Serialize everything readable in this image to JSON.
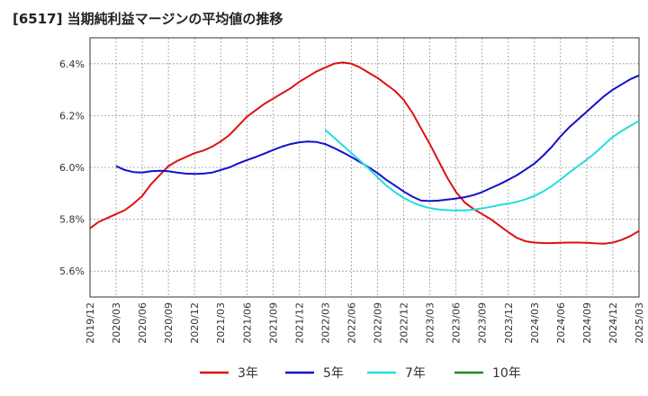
{
  "title": "[6517]  当期純利益マージンの平均値の推移",
  "chart_data": {
    "type": "line",
    "title": "[6517]  当期純利益マージンの平均値の推移",
    "ylim": [
      5.5,
      6.5
    ],
    "yticks": [
      "5.6%",
      "5.8%",
      "6.0%",
      "6.2%",
      "6.4%"
    ],
    "ytick_values": [
      5.6,
      5.8,
      6.0,
      6.2,
      6.4
    ],
    "xticks": [
      "2019/12",
      "2020/03",
      "2020/06",
      "2020/09",
      "2020/12",
      "2021/03",
      "2021/06",
      "2021/09",
      "2021/12",
      "2022/03",
      "2022/06",
      "2022/09",
      "2022/12",
      "2023/03",
      "2023/06",
      "2023/09",
      "2023/12",
      "2024/03",
      "2024/06",
      "2024/09",
      "2024/12",
      "2025/03"
    ],
    "grid": true,
    "legend_position": "bottom",
    "series": [
      {
        "name": "3年",
        "color": "#dd1111",
        "points": [
          [
            "2019/12",
            5.765
          ],
          [
            "2020/01",
            5.79
          ],
          [
            "2020/02",
            5.805
          ],
          [
            "2020/03",
            5.82
          ],
          [
            "2020/04",
            5.835
          ],
          [
            "2020/05",
            5.86
          ],
          [
            "2020/06",
            5.89
          ],
          [
            "2020/07",
            5.935
          ],
          [
            "2020/08",
            5.97
          ],
          [
            "2020/09",
            6.005
          ],
          [
            "2020/10",
            6.025
          ],
          [
            "2020/11",
            6.04
          ],
          [
            "2020/12",
            6.055
          ],
          [
            "2021/01",
            6.065
          ],
          [
            "2021/02",
            6.08
          ],
          [
            "2021/03",
            6.1
          ],
          [
            "2021/04",
            6.125
          ],
          [
            "2021/05",
            6.16
          ],
          [
            "2021/06",
            6.195
          ],
          [
            "2021/07",
            6.22
          ],
          [
            "2021/08",
            6.245
          ],
          [
            "2021/09",
            6.265
          ],
          [
            "2021/10",
            6.285
          ],
          [
            "2021/11",
            6.305
          ],
          [
            "2021/12",
            6.33
          ],
          [
            "2022/01",
            6.35
          ],
          [
            "2022/02",
            6.37
          ],
          [
            "2022/03",
            6.385
          ],
          [
            "2022/04",
            6.4
          ],
          [
            "2022/05",
            6.405
          ],
          [
            "2022/06",
            6.4
          ],
          [
            "2022/07",
            6.385
          ],
          [
            "2022/08",
            6.365
          ],
          [
            "2022/09",
            6.345
          ],
          [
            "2022/10",
            6.32
          ],
          [
            "2022/11",
            6.295
          ],
          [
            "2022/12",
            6.26
          ],
          [
            "2023/01",
            6.21
          ],
          [
            "2023/02",
            6.15
          ],
          [
            "2023/03",
            6.09
          ],
          [
            "2023/04",
            6.025
          ],
          [
            "2023/05",
            5.96
          ],
          [
            "2023/06",
            5.905
          ],
          [
            "2023/07",
            5.865
          ],
          [
            "2023/08",
            5.84
          ],
          [
            "2023/09",
            5.82
          ],
          [
            "2023/10",
            5.8
          ],
          [
            "2023/11",
            5.775
          ],
          [
            "2023/12",
            5.75
          ],
          [
            "2024/01",
            5.728
          ],
          [
            "2024/02",
            5.715
          ],
          [
            "2024/03",
            5.71
          ],
          [
            "2024/04",
            5.708
          ],
          [
            "2024/05",
            5.708
          ],
          [
            "2024/06",
            5.709
          ],
          [
            "2024/07",
            5.71
          ],
          [
            "2024/08",
            5.71
          ],
          [
            "2024/09",
            5.709
          ],
          [
            "2024/10",
            5.707
          ],
          [
            "2024/11",
            5.706
          ],
          [
            "2024/12",
            5.71
          ],
          [
            "2025/01",
            5.72
          ],
          [
            "2025/02",
            5.735
          ],
          [
            "2025/03",
            5.755
          ]
        ]
      },
      {
        "name": "5年",
        "color": "#1111cc",
        "points": [
          [
            "2020/03",
            6.005
          ],
          [
            "2020/04",
            5.99
          ],
          [
            "2020/05",
            5.982
          ],
          [
            "2020/06",
            5.98
          ],
          [
            "2020/07",
            5.985
          ],
          [
            "2020/08",
            5.987
          ],
          [
            "2020/09",
            5.985
          ],
          [
            "2020/10",
            5.98
          ],
          [
            "2020/11",
            5.976
          ],
          [
            "2020/12",
            5.975
          ],
          [
            "2021/01",
            5.976
          ],
          [
            "2021/02",
            5.98
          ],
          [
            "2021/03",
            5.99
          ],
          [
            "2021/04",
            6.0
          ],
          [
            "2021/05",
            6.015
          ],
          [
            "2021/06",
            6.028
          ],
          [
            "2021/07",
            6.04
          ],
          [
            "2021/08",
            6.053
          ],
          [
            "2021/09",
            6.067
          ],
          [
            "2021/10",
            6.08
          ],
          [
            "2021/11",
            6.09
          ],
          [
            "2021/12",
            6.097
          ],
          [
            "2022/01",
            6.1
          ],
          [
            "2022/02",
            6.098
          ],
          [
            "2022/03",
            6.09
          ],
          [
            "2022/04",
            6.075
          ],
          [
            "2022/05",
            6.058
          ],
          [
            "2022/06",
            6.04
          ],
          [
            "2022/07",
            6.02
          ],
          [
            "2022/08",
            6.0
          ],
          [
            "2022/09",
            5.978
          ],
          [
            "2022/10",
            5.952
          ],
          [
            "2022/11",
            5.93
          ],
          [
            "2022/12",
            5.907
          ],
          [
            "2023/01",
            5.887
          ],
          [
            "2023/02",
            5.872
          ],
          [
            "2023/03",
            5.87
          ],
          [
            "2023/04",
            5.872
          ],
          [
            "2023/05",
            5.876
          ],
          [
            "2023/06",
            5.88
          ],
          [
            "2023/07",
            5.885
          ],
          [
            "2023/08",
            5.893
          ],
          [
            "2023/09",
            5.905
          ],
          [
            "2023/10",
            5.92
          ],
          [
            "2023/11",
            5.935
          ],
          [
            "2023/12",
            5.952
          ],
          [
            "2024/01",
            5.97
          ],
          [
            "2024/02",
            5.992
          ],
          [
            "2024/03",
            6.015
          ],
          [
            "2024/04",
            6.045
          ],
          [
            "2024/05",
            6.08
          ],
          [
            "2024/06",
            6.12
          ],
          [
            "2024/07",
            6.155
          ],
          [
            "2024/08",
            6.185
          ],
          [
            "2024/09",
            6.215
          ],
          [
            "2024/10",
            6.245
          ],
          [
            "2024/11",
            6.275
          ],
          [
            "2024/12",
            6.3
          ],
          [
            "2025/01",
            6.32
          ],
          [
            "2025/02",
            6.34
          ],
          [
            "2025/03",
            6.355
          ]
        ]
      },
      {
        "name": "7年",
        "color": "#22dddd",
        "points": [
          [
            "2022/03",
            6.145
          ],
          [
            "2022/04",
            6.115
          ],
          [
            "2022/05",
            6.085
          ],
          [
            "2022/06",
            6.055
          ],
          [
            "2022/07",
            6.025
          ],
          [
            "2022/08",
            5.995
          ],
          [
            "2022/09",
            5.962
          ],
          [
            "2022/10",
            5.93
          ],
          [
            "2022/11",
            5.905
          ],
          [
            "2022/12",
            5.882
          ],
          [
            "2023/01",
            5.865
          ],
          [
            "2023/02",
            5.852
          ],
          [
            "2023/03",
            5.843
          ],
          [
            "2023/04",
            5.838
          ],
          [
            "2023/05",
            5.835
          ],
          [
            "2023/06",
            5.834
          ],
          [
            "2023/07",
            5.834
          ],
          [
            "2023/08",
            5.837
          ],
          [
            "2023/09",
            5.842
          ],
          [
            "2023/10",
            5.848
          ],
          [
            "2023/11",
            5.855
          ],
          [
            "2023/12",
            5.86
          ],
          [
            "2024/01",
            5.867
          ],
          [
            "2024/02",
            5.877
          ],
          [
            "2024/03",
            5.89
          ],
          [
            "2024/04",
            5.907
          ],
          [
            "2024/05",
            5.928
          ],
          [
            "2024/06",
            5.953
          ],
          [
            "2024/07",
            5.98
          ],
          [
            "2024/08",
            6.005
          ],
          [
            "2024/09",
            6.03
          ],
          [
            "2024/10",
            6.057
          ],
          [
            "2024/11",
            6.088
          ],
          [
            "2024/12",
            6.118
          ],
          [
            "2025/01",
            6.14
          ],
          [
            "2025/02",
            6.16
          ],
          [
            "2025/03",
            6.18
          ]
        ]
      },
      {
        "name": "10年",
        "color": "#228822",
        "points": []
      }
    ]
  }
}
